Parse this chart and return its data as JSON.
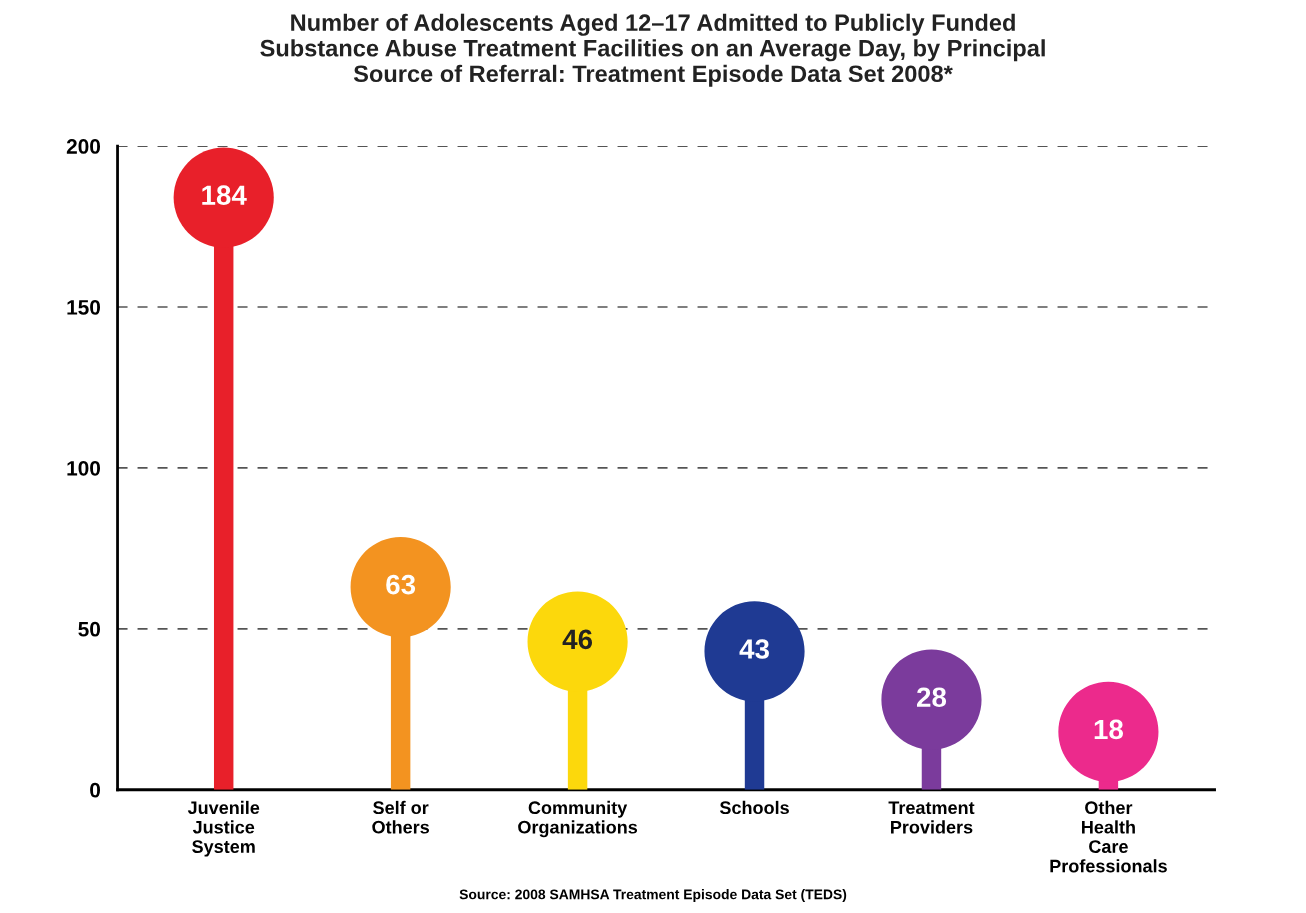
{
  "chart_data": {
    "type": "lollipop",
    "title": "Number of Adolescents Aged 12–17 Admitted to Publicly Funded\nSubstance Abuse Treatment Facilities on an Average Day, by Principal\nSource of Referral: Treatment Episode Data Set 2008*",
    "categories": [
      "Juvenile\nJustice\nSystem",
      "Self or\nOthers",
      "Community\nOrganizations",
      "Schools",
      "Treatment\nProviders",
      "Other\nHealth\nCare\nProfessionals"
    ],
    "values": [
      184,
      63,
      46,
      43,
      28,
      18
    ],
    "colors": [
      "#e8202a",
      "#f39320",
      "#fcd80c",
      "#1f3a93",
      "#7b3b9c",
      "#ec2a8c"
    ],
    "data_labels": true,
    "ylim": [
      0,
      200
    ],
    "yticks": [
      0,
      50,
      100,
      150,
      200
    ],
    "grid": "y",
    "annotations": [
      "Source: 2008 SAMHSA Treatment Episode Data Set (TEDS)"
    ]
  }
}
